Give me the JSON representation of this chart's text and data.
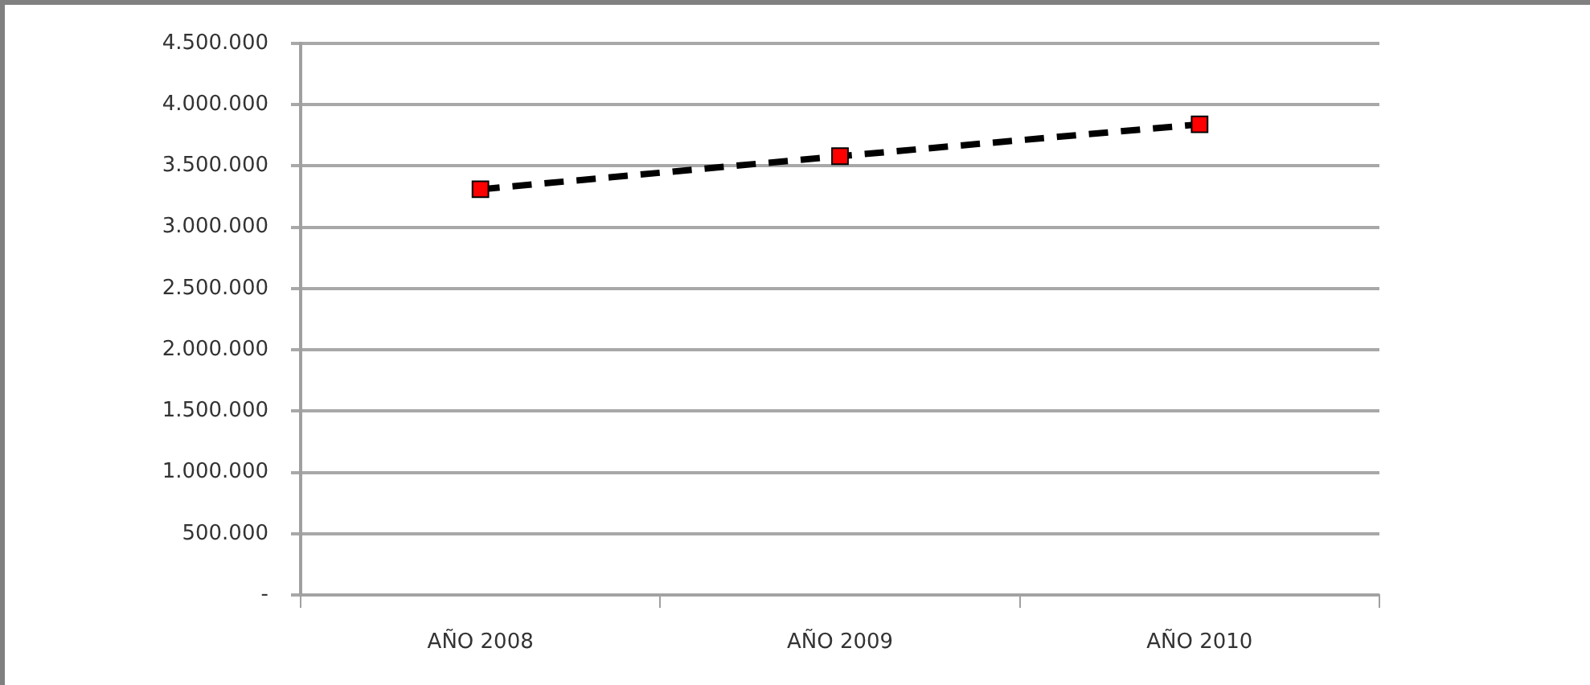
{
  "chart_data": {
    "type": "line",
    "categories": [
      "AÑO 2008",
      "AÑO 2009",
      "AÑO 2010"
    ],
    "series": [
      {
        "color": "#000000",
        "colors": [
          "#ff0000",
          "#ff0000",
          "#ff0000"
        ],
        "values": [
          3310000,
          3580000,
          3840000
        ]
      }
    ],
    "ylim": [
      0,
      4500000
    ],
    "yticks": [
      {
        "value": 0,
        "label": "-"
      },
      {
        "value": 500000,
        "label": "500.000"
      },
      {
        "value": 1000000,
        "label": "1.000.000"
      },
      {
        "value": 1500000,
        "label": "1.500.000"
      },
      {
        "value": 2000000,
        "label": "2.000.000"
      },
      {
        "value": 2500000,
        "label": "2.500.000"
      },
      {
        "value": 3000000,
        "label": "3.000.000"
      },
      {
        "value": 3500000,
        "label": "3.500.000"
      },
      {
        "value": 4000000,
        "label": "4.000.000"
      },
      {
        "value": 4500000,
        "label": "4.500.000"
      }
    ],
    "grid": "y",
    "legend": false,
    "marker": "square",
    "line_style": "dashed"
  }
}
